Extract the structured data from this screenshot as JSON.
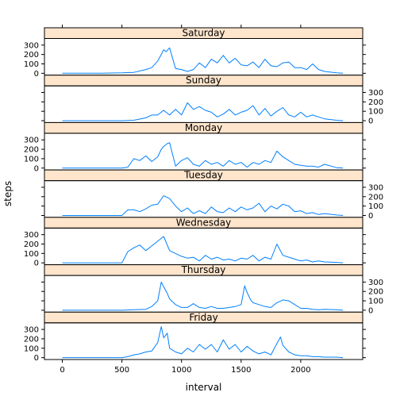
{
  "chart_data": {
    "type": "line",
    "xlabel": "interval",
    "ylabel": "steps",
    "xlim": [
      -150,
      2520
    ],
    "ylim": [
      -20,
      370
    ],
    "x_ticks": [
      0,
      500,
      1000,
      1500,
      2000
    ],
    "y_ticks": [
      0,
      100,
      200,
      300
    ],
    "grid": false,
    "colors": {
      "line": "#0080ff",
      "strip": "#ffe5cc"
    },
    "panels": [
      {
        "name": "Saturday",
        "x": [
          0,
          300,
          500,
          600,
          700,
          750,
          800,
          830,
          850,
          870,
          900,
          950,
          1000,
          1050,
          1100,
          1150,
          1200,
          1250,
          1300,
          1350,
          1400,
          1450,
          1500,
          1550,
          1600,
          1650,
          1700,
          1750,
          1800,
          1850,
          1900,
          1950,
          2000,
          2050,
          2100,
          2150,
          2200,
          2300,
          2355
        ],
        "values": [
          0,
          0,
          5,
          10,
          40,
          60,
          130,
          200,
          250,
          230,
          270,
          50,
          40,
          20,
          40,
          110,
          60,
          150,
          110,
          190,
          110,
          160,
          90,
          80,
          120,
          60,
          150,
          80,
          70,
          110,
          120,
          60,
          60,
          40,
          100,
          40,
          20,
          5,
          0
        ]
      },
      {
        "name": "Sunday",
        "x": [
          0,
          300,
          500,
          600,
          700,
          750,
          800,
          850,
          900,
          950,
          1000,
          1050,
          1100,
          1150,
          1200,
          1250,
          1300,
          1350,
          1400,
          1450,
          1500,
          1550,
          1600,
          1650,
          1700,
          1750,
          1800,
          1850,
          1900,
          1950,
          2000,
          2050,
          2100,
          2150,
          2200,
          2300,
          2355
        ],
        "values": [
          0,
          0,
          0,
          5,
          30,
          60,
          60,
          110,
          60,
          120,
          60,
          190,
          120,
          150,
          110,
          90,
          40,
          70,
          120,
          60,
          90,
          110,
          160,
          60,
          130,
          50,
          100,
          140,
          60,
          40,
          90,
          40,
          60,
          40,
          20,
          5,
          0
        ]
      },
      {
        "name": "Monday",
        "x": [
          0,
          300,
          500,
          550,
          600,
          650,
          700,
          750,
          800,
          830,
          850,
          880,
          900,
          950,
          1000,
          1050,
          1100,
          1150,
          1200,
          1250,
          1300,
          1350,
          1400,
          1450,
          1500,
          1550,
          1600,
          1650,
          1700,
          1750,
          1800,
          1850,
          1900,
          1950,
          2000,
          2050,
          2100,
          2150,
          2200,
          2300,
          2355
        ],
        "values": [
          0,
          0,
          0,
          10,
          100,
          80,
          130,
          70,
          120,
          200,
          230,
          260,
          270,
          20,
          80,
          110,
          40,
          20,
          80,
          40,
          60,
          20,
          80,
          40,
          60,
          10,
          60,
          40,
          80,
          60,
          180,
          120,
          80,
          40,
          30,
          20,
          20,
          10,
          40,
          5,
          0
        ]
      },
      {
        "name": "Tuesday",
        "x": [
          0,
          300,
          500,
          550,
          600,
          650,
          700,
          750,
          800,
          850,
          900,
          950,
          1000,
          1050,
          1100,
          1150,
          1200,
          1250,
          1300,
          1350,
          1400,
          1450,
          1500,
          1550,
          1600,
          1650,
          1700,
          1750,
          1800,
          1850,
          1900,
          1950,
          2000,
          2050,
          2100,
          2150,
          2200,
          2300,
          2355
        ],
        "values": [
          0,
          0,
          0,
          60,
          60,
          40,
          70,
          110,
          120,
          210,
          180,
          100,
          40,
          80,
          20,
          50,
          20,
          90,
          40,
          30,
          80,
          40,
          90,
          60,
          80,
          130,
          40,
          100,
          70,
          120,
          100,
          40,
          50,
          20,
          30,
          10,
          20,
          5,
          0
        ]
      },
      {
        "name": "Wednesday",
        "x": [
          0,
          300,
          500,
          550,
          600,
          650,
          700,
          750,
          800,
          850,
          900,
          950,
          1000,
          1050,
          1100,
          1150,
          1200,
          1250,
          1300,
          1350,
          1400,
          1450,
          1500,
          1550,
          1600,
          1650,
          1700,
          1750,
          1800,
          1850,
          1900,
          1950,
          2000,
          2050,
          2100,
          2150,
          2200,
          2300,
          2355
        ],
        "values": [
          0,
          0,
          0,
          120,
          160,
          190,
          130,
          180,
          230,
          280,
          130,
          100,
          70,
          50,
          60,
          20,
          80,
          40,
          60,
          30,
          40,
          20,
          50,
          40,
          80,
          20,
          60,
          40,
          200,
          80,
          60,
          40,
          20,
          30,
          10,
          20,
          10,
          5,
          0
        ]
      },
      {
        "name": "Thursday",
        "x": [
          0,
          300,
          500,
          600,
          700,
          750,
          800,
          830,
          850,
          880,
          900,
          950,
          1000,
          1050,
          1100,
          1150,
          1200,
          1250,
          1300,
          1350,
          1400,
          1450,
          1500,
          1530,
          1550,
          1580,
          1600,
          1650,
          1700,
          1750,
          1800,
          1850,
          1900,
          1950,
          2000,
          2050,
          2100,
          2150,
          2200,
          2300,
          2355
        ],
        "values": [
          0,
          0,
          0,
          5,
          10,
          40,
          100,
          300,
          250,
          180,
          120,
          60,
          30,
          30,
          70,
          30,
          20,
          40,
          20,
          20,
          30,
          40,
          60,
          260,
          190,
          110,
          80,
          60,
          40,
          30,
          80,
          110,
          100,
          60,
          20,
          20,
          10,
          5,
          10,
          5,
          0
        ]
      },
      {
        "name": "Friday",
        "x": [
          0,
          300,
          500,
          550,
          600,
          650,
          700,
          750,
          800,
          830,
          850,
          880,
          900,
          950,
          1000,
          1050,
          1100,
          1150,
          1200,
          1250,
          1300,
          1350,
          1400,
          1450,
          1500,
          1550,
          1600,
          1650,
          1700,
          1750,
          1800,
          1830,
          1850,
          1900,
          1950,
          2000,
          2050,
          2100,
          2150,
          2200,
          2300,
          2355
        ],
        "values": [
          0,
          0,
          0,
          10,
          30,
          40,
          60,
          70,
          160,
          330,
          210,
          260,
          100,
          60,
          40,
          100,
          60,
          140,
          90,
          140,
          60,
          190,
          90,
          140,
          60,
          120,
          70,
          40,
          60,
          30,
          150,
          220,
          130,
          60,
          30,
          20,
          20,
          10,
          10,
          5,
          5,
          0
        ]
      }
    ]
  }
}
